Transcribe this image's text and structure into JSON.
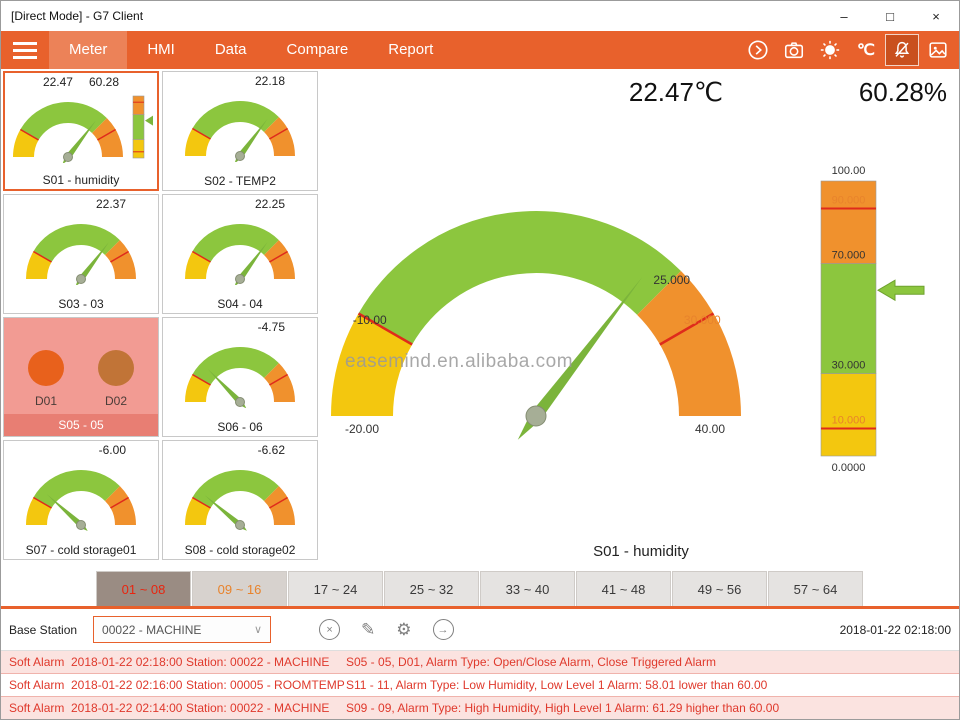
{
  "theme": {
    "accent": "#E8612C",
    "alarm_red": "#DF392C",
    "gauge_green": "#8CC63E",
    "gauge_yellow": "#F3C70F",
    "gauge_orange": "#F0912D"
  },
  "titlebar": {
    "title": "[Direct Mode] - G7 Client",
    "minimize": "–",
    "maximize": "□",
    "close": "×"
  },
  "navbar": {
    "items": [
      {
        "label": "Meter",
        "active": true
      },
      {
        "label": "HMI",
        "active": false
      },
      {
        "label": "Data",
        "active": false
      },
      {
        "label": "Compare",
        "active": false
      },
      {
        "label": "Report",
        "active": false
      }
    ],
    "unit_label": "℃"
  },
  "gauge_defaults": {
    "min": -20,
    "max": 40,
    "segments": [
      {
        "from": -20,
        "to": -10,
        "color": "#F3C70F"
      },
      {
        "from": -10,
        "to": 25,
        "color": "#8CC63E"
      },
      {
        "from": 25,
        "to": 40,
        "color": "#F0912D"
      }
    ],
    "lines": [
      -10,
      30
    ]
  },
  "bar_defaults": {
    "min": 0,
    "max": 100,
    "segments": [
      {
        "from": 0,
        "to": 30,
        "color": "#F3C70F"
      },
      {
        "from": 30,
        "to": 70,
        "color": "#8CC63E"
      },
      {
        "from": 70,
        "to": 100,
        "color": "#F0912D"
      }
    ],
    "lines": [
      10,
      90
    ]
  },
  "meter_grid": {
    "tiles": [
      {
        "type": "gauge",
        "label": "S01 - humidity",
        "value": "22.47",
        "value2": "60.28",
        "gauge_value": 22.47,
        "bar_value": 60.28,
        "selected": true
      },
      {
        "type": "gauge",
        "label": "S02 - TEMP2",
        "value": "22.18",
        "gauge_value": 22.18
      },
      {
        "type": "gauge",
        "label": "S03 - 03",
        "value": "22.37",
        "gauge_value": 22.37
      },
      {
        "type": "gauge",
        "label": "S04 - 04",
        "value": "22.25",
        "gauge_value": 22.25
      },
      {
        "type": "digital",
        "label": "S05 - 05",
        "channels": [
          {
            "label": "D01",
            "color": "#E8611C"
          },
          {
            "label": "D02",
            "color": "#C17437"
          }
        ]
      },
      {
        "type": "gauge",
        "label": "S06 - 06",
        "value": "-4.75",
        "gauge_value": -4.75
      },
      {
        "type": "gauge",
        "label": "S07 - cold storage01",
        "value": "-6.00",
        "gauge_value": -6.0
      },
      {
        "type": "gauge",
        "label": "S08 - cold storage02",
        "value": "-6.62",
        "gauge_value": -6.62
      }
    ]
  },
  "main_panel": {
    "temp_value": "22.47℃",
    "humidity_value": "60.28%",
    "watermark": "easemind.en.alibaba.com",
    "station_label": "S01 - humidity",
    "gauge": {
      "value": 22.47,
      "labels": [
        {
          "value": -20,
          "text": "-20.00",
          "color": "#333333"
        },
        {
          "value": -10,
          "text": "-10.00",
          "color": "#333333"
        },
        {
          "value": 25,
          "text": "25.000",
          "color": "#333333"
        },
        {
          "value": 30,
          "text": "30.000",
          "color": "#E8832C"
        },
        {
          "value": 40,
          "text": "40.00",
          "color": "#333333"
        }
      ]
    },
    "bar": {
      "value": 60.28,
      "labels": [
        {
          "value": 0,
          "text": "0.0000",
          "color": "#333333"
        },
        {
          "value": 10,
          "text": "10.000",
          "color": "#E8832C"
        },
        {
          "value": 30,
          "text": "30.000",
          "color": "#333333"
        },
        {
          "value": 70,
          "text": "70.000",
          "color": "#333333"
        },
        {
          "value": 90,
          "text": "90.000",
          "color": "#E8832C"
        },
        {
          "value": 100,
          "text": "100.00",
          "color": "#333333"
        }
      ]
    }
  },
  "page_tabs": [
    {
      "label": "01 ~ 08",
      "state": "active"
    },
    {
      "label": "09 ~ 16",
      "state": "alt"
    },
    {
      "label": "17 ~ 24",
      "state": ""
    },
    {
      "label": "25 ~ 32",
      "state": ""
    },
    {
      "label": "33 ~ 40",
      "state": ""
    },
    {
      "label": "41 ~ 48",
      "state": ""
    },
    {
      "label": "49 ~ 56",
      "state": ""
    },
    {
      "label": "57 ~ 64",
      "state": ""
    }
  ],
  "toolbar": {
    "label": "Base Station",
    "dropdown_value": "00022 - MACHINE",
    "timestamp": "2018-01-22 02:18:00"
  },
  "icons": {
    "chevron_down": "∨",
    "circle_x": "×",
    "pencil": "✎",
    "gear": "⚙",
    "arrow_right": "→"
  },
  "alarms": [
    {
      "type": "Soft Alarm",
      "time": "2018-01-22 02:18:00",
      "station": "Station: 00022 - MACHINE",
      "detail": "S05 - 05, D01, Alarm Type: Open/Close Alarm, Close Triggered Alarm"
    },
    {
      "type": "Soft Alarm",
      "time": "2018-01-22 02:16:00",
      "station": "Station: 00005 - ROOMTEMP",
      "detail": "S11 - 11, Alarm Type: Low Humidity, Low Level 1 Alarm: 58.01 lower than 60.00"
    },
    {
      "type": "Soft Alarm",
      "time": "2018-01-22 02:14:00",
      "station": "Station: 00022 - MACHINE",
      "detail": "S09 - 09, Alarm Type: High Humidity, High Level 1 Alarm: 61.29 higher than 60.00"
    }
  ]
}
